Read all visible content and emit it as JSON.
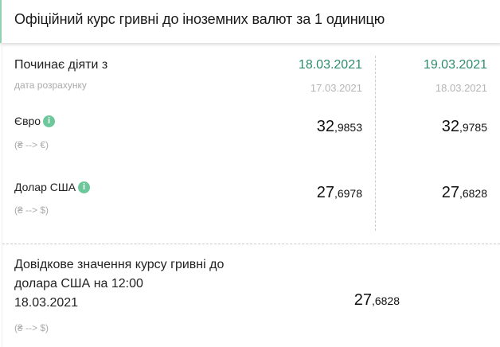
{
  "header": {
    "title": "Офіційний курс гривні до іноземних валют за 1 одиницю"
  },
  "table": {
    "effective_label": "Починає діяти з",
    "calc_label": "дата розрахунку",
    "columns": [
      {
        "effective_date": "18.03.2021",
        "calc_date": "17.03.2021"
      },
      {
        "effective_date": "19.03.2021",
        "calc_date": "18.03.2021"
      }
    ],
    "rows": [
      {
        "name": "Євро",
        "direction": "(₴ --> €)",
        "values": [
          {
            "int": "32",
            "dec": ",9853"
          },
          {
            "int": "32",
            "dec": ",9785"
          }
        ]
      },
      {
        "name": "Долар США",
        "direction": "(₴ --> $)",
        "values": [
          {
            "int": "27",
            "dec": ",6978"
          },
          {
            "int": "27",
            "dec": ",6828"
          }
        ]
      }
    ]
  },
  "reference": {
    "line1": "Довідкове значення курсу гривні до",
    "line2": "долара США на 12:00",
    "date": "18.03.2021",
    "value_int": "27",
    "value_dec": ",6828",
    "direction": "(₴ --> $)"
  },
  "colors": {
    "accent": "#2e8b6a",
    "info": "#6cc79b"
  },
  "icons": {
    "info": "info-icon"
  }
}
